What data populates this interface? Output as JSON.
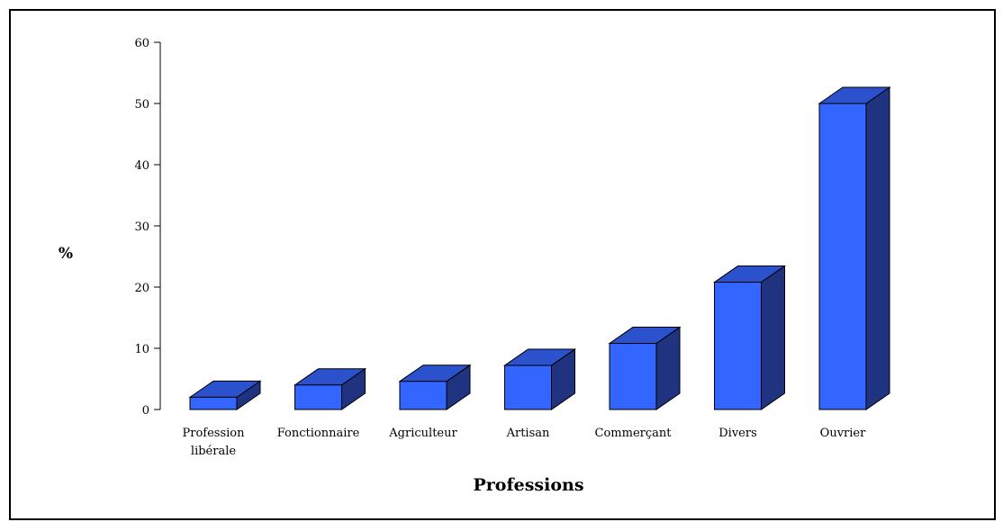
{
  "chart_data": {
    "type": "bar",
    "categories": [
      "Profession libérale",
      "Fonctionnaire",
      "Agriculteur",
      "Artisan",
      "Commerçant",
      "Divers",
      "Ouvrier"
    ],
    "category_lines": [
      [
        "Profession",
        "libérale"
      ],
      [
        "Fonctionnaire"
      ],
      [
        "Agriculteur"
      ],
      [
        "Artisan"
      ],
      [
        "Commerçant"
      ],
      [
        "Divers"
      ],
      [
        "Ouvrier"
      ]
    ],
    "values": [
      2,
      4,
      4.6,
      7.2,
      10.8,
      20.8,
      50
    ],
    "xlabel": "Professions",
    "ylabel": "%",
    "ylim": [
      0,
      60
    ],
    "yticks": [
      0,
      10,
      20,
      30,
      40,
      50,
      60
    ],
    "grid": false,
    "colors": {
      "front": "#3366FF",
      "top": "#2B52CC",
      "side": "#1F3380",
      "outline": "#000000"
    }
  }
}
